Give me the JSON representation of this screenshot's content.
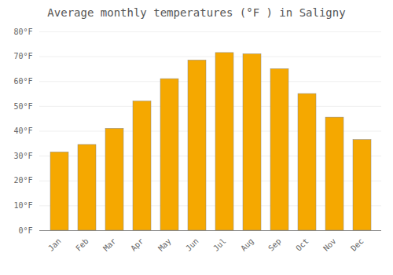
{
  "chart_data": {
    "type": "bar",
    "title": "Average monthly temperatures (°F ) in Saligny",
    "categories": [
      "Jan",
      "Feb",
      "Mar",
      "Apr",
      "May",
      "Jun",
      "Jul",
      "Aug",
      "Sep",
      "Oct",
      "Nov",
      "Dec"
    ],
    "values": [
      31.5,
      34.5,
      41,
      52,
      61,
      68.5,
      71.5,
      71,
      65,
      55,
      45.5,
      36.5
    ],
    "color": "#F5A800",
    "ylim": [
      0,
      80
    ],
    "yticks": [
      {
        "value": 0,
        "label": "0°F"
      },
      {
        "value": 10,
        "label": "10°F"
      },
      {
        "value": 20,
        "label": "20°F"
      },
      {
        "value": 30,
        "label": "30°F"
      },
      {
        "value": 40,
        "label": "40°F"
      },
      {
        "value": 50,
        "label": "50°F"
      },
      {
        "value": 60,
        "label": "60°F"
      },
      {
        "value": 70,
        "label": "70°F"
      },
      {
        "value": 80,
        "label": "80°F"
      }
    ],
    "grid": true
  }
}
